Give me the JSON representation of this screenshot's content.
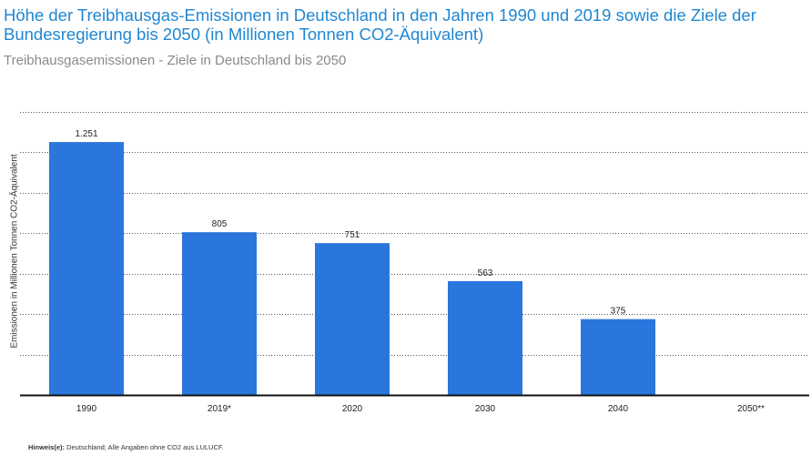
{
  "chart_data": {
    "type": "bar",
    "title": "Höhe der Treibhausgas-Emissionen in Deutschland in den Jahren 1990 und 2019 sowie die Ziele der Bundesregierung bis 2050 (in Millionen Tonnen CO2-Äquivalent)",
    "subtitle": "Treibhausgasemissionen - Ziele in Deutschland bis 2050",
    "xlabel": "",
    "ylabel": "Emissionen in Millionen Tonnen CO2-Äquivalent",
    "categories": [
      "1990",
      "2019*",
      "2020",
      "2030",
      "2040",
      "2050**"
    ],
    "values": [
      1251,
      805,
      751,
      563,
      375,
      null
    ],
    "value_labels": [
      "1.251",
      "805",
      "751",
      "563",
      "375",
      ""
    ],
    "ylim": [
      0,
      1400
    ],
    "grid": true,
    "bar_color": "#2a76dd",
    "title_color": "#1f87d2"
  },
  "footnote": {
    "label": "Hinweis(e):",
    "text": " Deutschland; Alle Angaben ohne CO2 aus LULUCF."
  }
}
